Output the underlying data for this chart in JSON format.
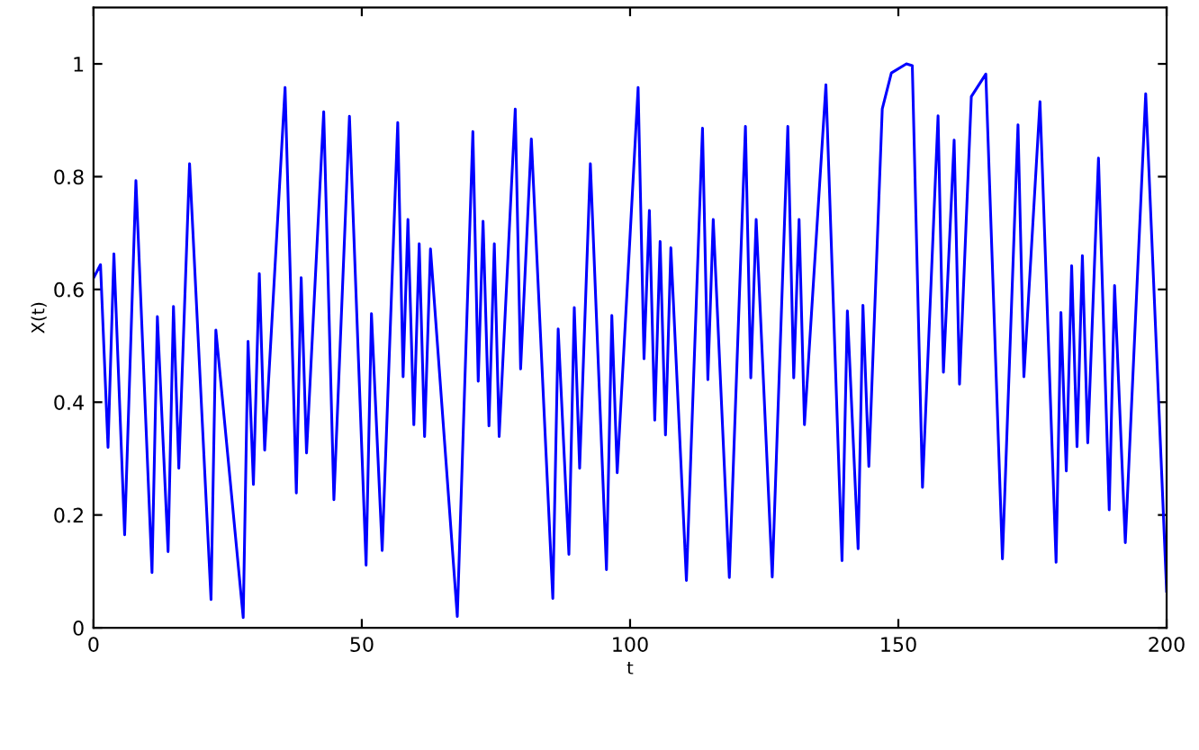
{
  "chart_data": {
    "type": "line",
    "xlabel": "t",
    "ylabel": "X(t)",
    "xlim": [
      0,
      200
    ],
    "ylim": [
      0,
      1.1
    ],
    "xticks": [
      0,
      50,
      100,
      150,
      200
    ],
    "yticks": [
      0,
      0.2,
      0.4,
      0.6,
      0.8,
      1
    ],
    "grid": false,
    "legend": false,
    "marker": "none",
    "line_style": "solid",
    "series": [
      {
        "color": "#0000ff",
        "x": [
          0,
          1.3,
          2.7,
          3.8,
          5.8,
          7.9,
          10.9,
          11.9,
          13.9,
          14.9,
          15.9,
          17.9,
          21.9,
          22.8,
          27.9,
          28.8,
          29.8,
          30.9,
          31.9,
          35.7,
          37.8,
          38.7,
          39.7,
          42.9,
          44.8,
          47.7,
          50.8,
          51.8,
          53.8,
          56.7,
          57.7,
          58.6,
          59.7,
          60.7,
          61.7,
          62.8,
          67.8,
          70.7,
          71.7,
          72.6,
          73.7,
          74.7,
          75.6,
          78.6,
          79.6,
          81.6,
          85.6,
          86.6,
          88.6,
          89.6,
          90.6,
          92.6,
          95.6,
          96.6,
          97.6,
          101.5,
          102.6,
          103.6,
          104.6,
          105.6,
          106.6,
          107.6,
          110.5,
          113.5,
          114.5,
          115.5,
          118.5,
          121.5,
          122.5,
          123.5,
          126.5,
          129.4,
          130.5,
          131.5,
          132.5,
          136.5,
          139.5,
          140.5,
          142.5,
          143.4,
          144.5,
          147.0,
          148.7,
          151.5,
          152.6,
          154.5,
          157.4,
          158.4,
          160.4,
          161.4,
          163.6,
          166.3,
          169.4,
          172.3,
          173.4,
          176.4,
          179.4,
          180.3,
          181.3,
          182.3,
          183.3,
          184.3,
          185.3,
          187.3,
          189.3,
          190.3,
          192.3,
          196.1,
          200
        ],
        "values": [
          0.62,
          0.644,
          0.32,
          0.663,
          0.165,
          0.793,
          0.098,
          0.552,
          0.135,
          0.57,
          0.283,
          0.823,
          0.05,
          0.528,
          0.018,
          0.508,
          0.254,
          0.628,
          0.315,
          0.958,
          0.239,
          0.621,
          0.31,
          0.915,
          0.227,
          0.907,
          0.111,
          0.557,
          0.137,
          0.896,
          0.445,
          0.724,
          0.36,
          0.681,
          0.339,
          0.672,
          0.02,
          0.88,
          0.437,
          0.721,
          0.358,
          0.681,
          0.339,
          0.92,
          0.459,
          0.867,
          0.052,
          0.53,
          0.13,
          0.568,
          0.283,
          0.823,
          0.103,
          0.554,
          0.275,
          0.958,
          0.477,
          0.74,
          0.368,
          0.685,
          0.342,
          0.674,
          0.084,
          0.886,
          0.44,
          0.724,
          0.089,
          0.889,
          0.443,
          0.724,
          0.09,
          0.889,
          0.443,
          0.724,
          0.36,
          0.963,
          0.119,
          0.562,
          0.14,
          0.572,
          0.286,
          0.92,
          0.984,
          1.0,
          0.997,
          0.249,
          0.908,
          0.453,
          0.865,
          0.432,
          0.942,
          0.982,
          0.122,
          0.892,
          0.445,
          0.933,
          0.116,
          0.559,
          0.278,
          0.642,
          0.321,
          0.66,
          0.328,
          0.833,
          0.209,
          0.607,
          0.151,
          0.947,
          0.065
        ]
      }
    ]
  }
}
